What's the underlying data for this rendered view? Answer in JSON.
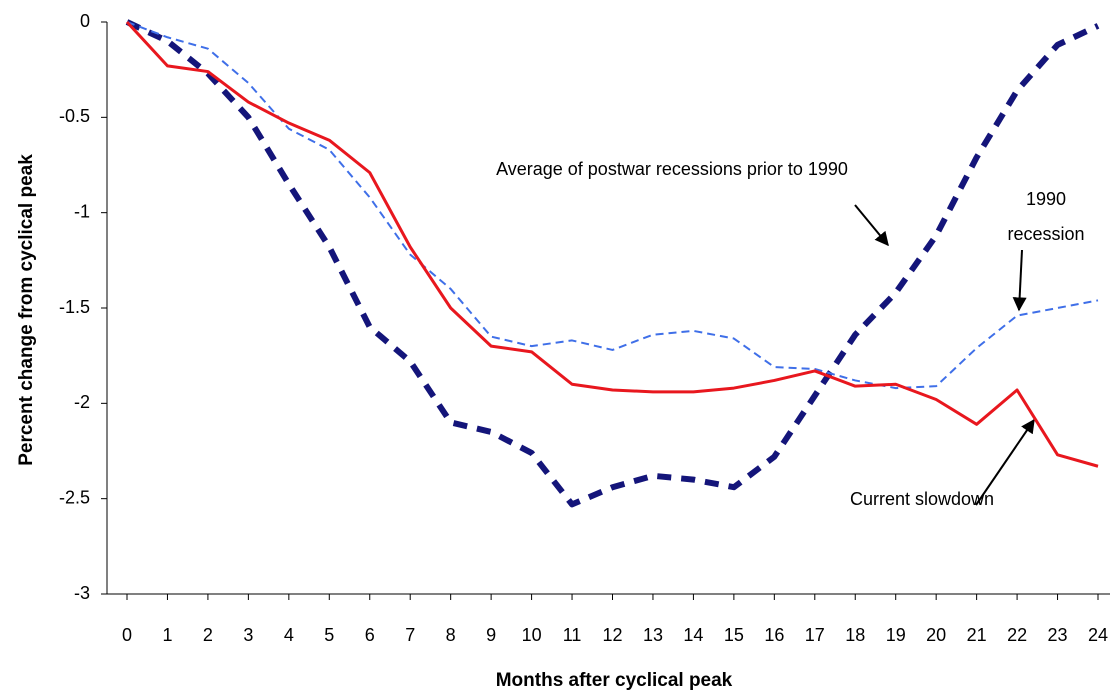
{
  "chart_data": {
    "type": "line",
    "x_label": "Months after cyclical peak",
    "y_label": "Percent change from cyclical peak",
    "x": [
      0,
      1,
      2,
      3,
      4,
      5,
      6,
      7,
      8,
      9,
      10,
      11,
      12,
      13,
      14,
      15,
      16,
      17,
      18,
      19,
      20,
      21,
      22,
      23,
      24
    ],
    "xlim": [
      0,
      24
    ],
    "xticks": [
      0,
      1,
      2,
      3,
      4,
      5,
      6,
      7,
      8,
      9,
      10,
      11,
      12,
      13,
      14,
      15,
      16,
      17,
      18,
      19,
      20,
      21,
      22,
      23,
      24
    ],
    "ylim": [
      -3,
      0
    ],
    "yticks": [
      0,
      -0.5,
      -1,
      -1.5,
      -2,
      -2.5,
      -3
    ],
    "grid": false,
    "series": [
      {
        "name": "Average of postwar recessions prior to 1990",
        "color": "#14157a",
        "style": "dashed-thick",
        "values": [
          0,
          -0.1,
          -0.27,
          -0.5,
          -0.85,
          -1.18,
          -1.6,
          -1.78,
          -2.1,
          -2.15,
          -2.26,
          -2.53,
          -2.44,
          -2.38,
          -2.4,
          -2.44,
          -2.28,
          -1.96,
          -1.64,
          -1.42,
          -1.12,
          -0.71,
          -0.36,
          -0.12,
          -0.02
        ]
      },
      {
        "name": "1990 recession",
        "color": "#3f6fe8",
        "style": "dashed",
        "values": [
          0,
          -0.08,
          -0.14,
          -0.32,
          -0.56,
          -0.67,
          -0.92,
          -1.22,
          -1.4,
          -1.65,
          -1.7,
          -1.67,
          -1.72,
          -1.64,
          -1.62,
          -1.66,
          -1.81,
          -1.82,
          -1.88,
          -1.92,
          -1.91,
          -1.71,
          -1.54,
          -1.5,
          -1.46
        ]
      },
      {
        "name": "Current slowdown",
        "color": "#e8171e",
        "style": "solid",
        "values": [
          0,
          -0.23,
          -0.26,
          -0.42,
          -0.53,
          -0.62,
          -0.79,
          -1.18,
          -1.5,
          -1.7,
          -1.73,
          -1.9,
          -1.93,
          -1.94,
          -1.94,
          -1.92,
          -1.88,
          -1.83,
          -1.91,
          -1.9,
          -1.98,
          -2.11,
          -1.93,
          -2.27,
          -2.33
        ]
      }
    ],
    "annotations": [
      {
        "text": "Average of postwar recessions prior to 1990"
      },
      {
        "text": [
          "1990",
          "recession"
        ]
      },
      {
        "text": "Current slowdown"
      }
    ]
  }
}
